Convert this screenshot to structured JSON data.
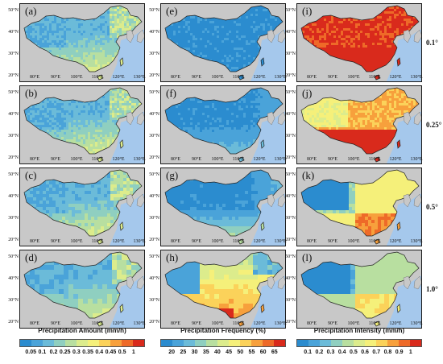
{
  "panels": [
    {
      "label": "(a)",
      "variable": "amount",
      "row": 0,
      "col": 0
    },
    {
      "label": "(e)",
      "variable": "frequency",
      "row": 0,
      "col": 1
    },
    {
      "label": "(i)",
      "variable": "intensity",
      "row": 0,
      "col": 2
    },
    {
      "label": "(b)",
      "variable": "amount",
      "row": 1,
      "col": 0
    },
    {
      "label": "(f)",
      "variable": "frequency",
      "row": 1,
      "col": 1
    },
    {
      "label": "(j)",
      "variable": "intensity",
      "row": 1,
      "col": 2
    },
    {
      "label": "(c)",
      "variable": "amount",
      "row": 2,
      "col": 0
    },
    {
      "label": "(g)",
      "variable": "frequency",
      "row": 2,
      "col": 1
    },
    {
      "label": "(k)",
      "variable": "intensity",
      "row": 2,
      "col": 2
    },
    {
      "label": "(d)",
      "variable": "amount",
      "row": 3,
      "col": 0
    },
    {
      "label": "(h)",
      "variable": "frequency",
      "row": 3,
      "col": 1
    },
    {
      "label": "(l)",
      "variable": "intensity",
      "row": 3,
      "col": 2
    }
  ],
  "resolutions": [
    "0.1°",
    "0.25°",
    "0.5°",
    "1.0°"
  ],
  "lat_ticks": [
    "50°N",
    "40°N",
    "30°N",
    "20°N"
  ],
  "lon_ticks": [
    "80°E",
    "90°E",
    "100°E",
    "110°E",
    "120°E",
    "130°E"
  ],
  "colorbars": [
    {
      "title": "Precipitation Amount (mm/h)",
      "ticks": [
        "0.05",
        "0.1",
        "0.2",
        "0.25",
        "0.3",
        "0.35",
        "0.4",
        "0.45",
        "0.5",
        "1"
      ]
    },
    {
      "title": "Precipitation Frequency (%)",
      "ticks": [
        "20",
        "25",
        "30",
        "35",
        "40",
        "45",
        "50",
        "55",
        "60",
        "65"
      ]
    },
    {
      "title": "Precipitation Intensity (mm/h)",
      "ticks": [
        "0.1",
        "0.2",
        "0.3",
        "0.4",
        "0.5",
        "0.6",
        "0.7",
        "0.8",
        "0.9",
        "1"
      ]
    }
  ],
  "palette": [
    "#2b8ccf",
    "#4aa3d9",
    "#6bbbd9",
    "#8fcfc0",
    "#b8dfa0",
    "#dcec8c",
    "#f5f07a",
    "#fbd25a",
    "#f7a03c",
    "#ee6a28",
    "#d92a1c"
  ],
  "colors": {
    "ocean": "#a5c8ec",
    "land_outside": "#c8c8c8",
    "border": "#1b1b1b"
  }
}
